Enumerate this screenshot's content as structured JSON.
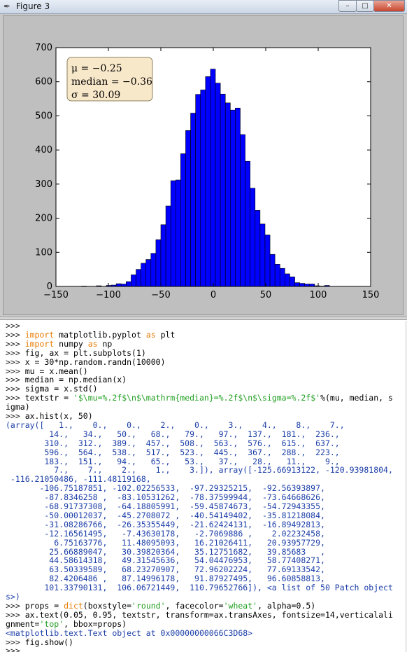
{
  "window": {
    "title": "Figure 3",
    "buttons": {
      "minimize": "–",
      "maximize": "□",
      "close": "✕"
    },
    "icon": "feather-icon"
  },
  "chart_data": {
    "type": "bar",
    "series_color": "#0000ff",
    "xlim": [
      -150,
      150
    ],
    "ylim": [
      0,
      700
    ],
    "xticks": [
      "−150",
      "−100",
      "−50",
      "0",
      "50",
      "100",
      "150"
    ],
    "xtick_values": [
      -150,
      -100,
      -50,
      0,
      50,
      100,
      150
    ],
    "yticks": [
      "0",
      "100",
      "200",
      "300",
      "400",
      "500",
      "600",
      "700"
    ],
    "ytick_values": [
      0,
      100,
      200,
      300,
      400,
      500,
      600,
      700
    ],
    "bin_edges": [
      -125.66913122,
      -120.93981804,
      -116.21050486,
      -111.48119168,
      -106.75187851,
      -102.02256533,
      -97.29325215,
      -92.56393897,
      -87.8346258,
      -83.10531262,
      -78.37599944,
      -73.64668626,
      -68.91737308,
      -64.18805991,
      -59.45874673,
      -54.72943355,
      -50.00012037,
      -45.2708072,
      -40.54149402,
      -35.81218084,
      -31.08286766,
      -26.35355449,
      -21.62424131,
      -16.89492813,
      -12.16561495,
      -7.43630178,
      -2.7069886,
      2.02232458,
      6.75163776,
      11.48095093,
      16.21026411,
      20.93957729,
      25.66889047,
      30.39820364,
      35.12751682,
      39.85683,
      44.58614318,
      49.31545636,
      54.04476953,
      58.77408271,
      63.50339589,
      68.23270907,
      72.96202224,
      77.69133542,
      82.4206486,
      87.14996178,
      91.87927495,
      96.60858813,
      101.33790131,
      106.06721449,
      110.79652766
    ],
    "values": [
      1,
      0,
      0,
      2,
      0,
      3,
      4,
      8,
      7,
      14,
      34,
      50,
      68,
      79,
      97,
      137,
      181,
      236,
      310,
      312,
      389,
      457,
      508,
      563,
      576,
      615,
      637,
      596,
      564,
      538,
      517,
      523,
      445,
      367,
      288,
      223,
      183,
      151,
      94,
      65,
      53,
      37,
      28,
      11,
      9,
      7,
      7,
      2,
      1,
      3
    ],
    "textbox": {
      "line1": "μ = −0.25",
      "line2": "median = −0.36",
      "line3": "σ = 30.09",
      "facecolor": "#f5deb3"
    }
  },
  "console": {
    "lines": [
      {
        "prompt": ">>>",
        "parts": []
      },
      {
        "prompt": ">>> ",
        "parts": [
          {
            "t": "import",
            "c": "kw"
          },
          {
            "t": " matplotlib.pyplot ",
            "c": "code"
          },
          {
            "t": "as",
            "c": "kw"
          },
          {
            "t": " plt",
            "c": "code"
          }
        ]
      },
      {
        "prompt": ">>> ",
        "parts": [
          {
            "t": "import",
            "c": "kw"
          },
          {
            "t": " numpy ",
            "c": "code"
          },
          {
            "t": "as",
            "c": "kw"
          },
          {
            "t": " np",
            "c": "code"
          }
        ]
      },
      {
        "prompt": ">>> ",
        "parts": [
          {
            "t": "fig, ax = plt.subplots(1)",
            "c": "code"
          }
        ]
      },
      {
        "prompt": ">>> ",
        "parts": [
          {
            "t": "x = 30*np.random.randn(10000)",
            "c": "code"
          }
        ]
      },
      {
        "prompt": ">>> ",
        "parts": [
          {
            "t": "mu = x.mean()",
            "c": "code"
          }
        ]
      },
      {
        "prompt": ">>> ",
        "parts": [
          {
            "t": "median = np.median(x)",
            "c": "code"
          }
        ]
      },
      {
        "prompt": ">>> ",
        "parts": [
          {
            "t": "sigma = x.std()",
            "c": "code"
          }
        ]
      },
      {
        "prompt": ">>> ",
        "parts": [
          {
            "t": "textstr = ",
            "c": "code"
          },
          {
            "t": "'$\\mu=%.2f$\\n$\\mathrm{median}=%.2f$\\n$\\sigma=%.2f$'",
            "c": "str"
          },
          {
            "t": "%(mu, median, s",
            "c": "code"
          }
        ]
      },
      {
        "prompt": "",
        "parts": [
          {
            "t": "igma)",
            "c": "code"
          }
        ]
      },
      {
        "prompt": ">>> ",
        "parts": [
          {
            "t": "ax.hist(x, 50)",
            "c": "code"
          }
        ]
      },
      {
        "prompt": "",
        "parts": [
          {
            "t": "(array([   1.,    0.,    0.,    2.,    0.,    3.,    4.,    8.,    7.,",
            "c": "out"
          }
        ]
      },
      {
        "prompt": "",
        "parts": [
          {
            "t": "         14.,   34.,   50.,   68.,   79.,   97.,  137.,  181.,  236.,",
            "c": "out"
          }
        ]
      },
      {
        "prompt": "",
        "parts": [
          {
            "t": "        310.,  312.,  389.,  457.,  508.,  563.,  576.,  615.,  637.,",
            "c": "out"
          }
        ]
      },
      {
        "prompt": "",
        "parts": [
          {
            "t": "        596.,  564.,  538.,  517.,  523.,  445.,  367.,  288.,  223.,",
            "c": "out"
          }
        ]
      },
      {
        "prompt": "",
        "parts": [
          {
            "t": "        183.,  151.,   94.,   65.,   53.,   37.,   28.,   11.,    9.,",
            "c": "out"
          }
        ]
      },
      {
        "prompt": "",
        "parts": [
          {
            "t": "          7.,    7.,    2.,    1.,    3.]), array([-125.66913122, -120.93981804,",
            "c": "out"
          }
        ]
      },
      {
        "prompt": "",
        "parts": [
          {
            "t": " -116.21050486, -111.48119168,",
            "c": "out"
          }
        ]
      },
      {
        "prompt": "",
        "parts": [
          {
            "t": "       -106.75187851, -102.02256533,  -97.29325215,  -92.56393897,",
            "c": "out"
          }
        ]
      },
      {
        "prompt": "",
        "parts": [
          {
            "t": "        -87.8346258 ,  -83.10531262,  -78.37599944,  -73.64668626,",
            "c": "out"
          }
        ]
      },
      {
        "prompt": "",
        "parts": [
          {
            "t": "        -68.91737308,  -64.18805991,  -59.45874673,  -54.72943355,",
            "c": "out"
          }
        ]
      },
      {
        "prompt": "",
        "parts": [
          {
            "t": "        -50.00012037,  -45.2708072 ,  -40.54149402,  -35.81218084,",
            "c": "out"
          }
        ]
      },
      {
        "prompt": "",
        "parts": [
          {
            "t": "        -31.08286766,  -26.35355449,  -21.62424131,  -16.89492813,",
            "c": "out"
          }
        ]
      },
      {
        "prompt": "",
        "parts": [
          {
            "t": "        -12.16561495,   -7.43630178,   -2.7069886 ,    2.02232458,",
            "c": "out"
          }
        ]
      },
      {
        "prompt": "",
        "parts": [
          {
            "t": "          6.75163776,   11.48095093,   16.21026411,   20.93957729,",
            "c": "out"
          }
        ]
      },
      {
        "prompt": "",
        "parts": [
          {
            "t": "         25.66889047,   30.39820364,   35.12751682,   39.85683   ,",
            "c": "out"
          }
        ]
      },
      {
        "prompt": "",
        "parts": [
          {
            "t": "         44.58614318,   49.31545636,   54.04476953,   58.77408271,",
            "c": "out"
          }
        ]
      },
      {
        "prompt": "",
        "parts": [
          {
            "t": "         63.50339589,   68.23270907,   72.96202224,   77.69133542,",
            "c": "out"
          }
        ]
      },
      {
        "prompt": "",
        "parts": [
          {
            "t": "         82.4206486 ,   87.14996178,   91.87927495,   96.60858813,",
            "c": "out"
          }
        ]
      },
      {
        "prompt": "",
        "parts": [
          {
            "t": "        101.33790131,  106.06721449,  110.79652766]), <a list of 50 Patch object",
            "c": "out"
          }
        ]
      },
      {
        "prompt": "",
        "parts": [
          {
            "t": "s>)",
            "c": "out"
          }
        ]
      },
      {
        "prompt": ">>> ",
        "parts": [
          {
            "t": "props = ",
            "c": "code"
          },
          {
            "t": "dict",
            "c": "kw"
          },
          {
            "t": "(boxstyle=",
            "c": "code"
          },
          {
            "t": "'round'",
            "c": "str"
          },
          {
            "t": ", facecolor=",
            "c": "code"
          },
          {
            "t": "'wheat'",
            "c": "str"
          },
          {
            "t": ", alpha=0.5)",
            "c": "code"
          }
        ]
      },
      {
        "prompt": ">>> ",
        "parts": [
          {
            "t": "ax.text(0.05, 0.95, textstr, transform=ax.transAxes, fontsize=14,verticalali",
            "c": "code"
          }
        ]
      },
      {
        "prompt": "",
        "parts": [
          {
            "t": "gnment=",
            "c": "code"
          },
          {
            "t": "'top'",
            "c": "str"
          },
          {
            "t": ", bbox=props)",
            "c": "code"
          }
        ]
      },
      {
        "prompt": "",
        "parts": [
          {
            "t": "<matplotlib.text.Text object at 0x00000000066C3D68>",
            "c": "out"
          }
        ]
      },
      {
        "prompt": ">>> ",
        "parts": [
          {
            "t": "fig.show()",
            "c": "code"
          }
        ]
      },
      {
        "prompt": ">>>",
        "parts": []
      }
    ]
  }
}
